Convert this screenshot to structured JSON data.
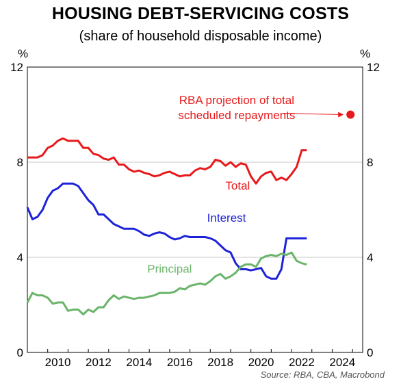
{
  "chart_data": {
    "type": "line",
    "title": "HOUSING DEBT-SERVICING COSTS",
    "subtitle": "(share of household disposable income)",
    "y_unit_left": "%",
    "y_unit_right": "%",
    "xlim": [
      2009,
      2025.5
    ],
    "ylim": [
      0,
      12
    ],
    "x_ticks": [
      2010,
      2012,
      2014,
      2016,
      2018,
      2020,
      2022,
      2024
    ],
    "y_ticks": [
      0,
      4,
      8,
      12
    ],
    "grid": true,
    "source": "Source: RBA, CBA, Macrobond",
    "colors": {
      "total": "#e8191b",
      "interest": "#1d22d8",
      "principal": "#6ab46a"
    },
    "series": [
      {
        "name": "Total",
        "color": "#e8191b",
        "x": [
          2009.0,
          2009.25,
          2009.5,
          2009.75,
          2010.0,
          2010.25,
          2010.5,
          2010.75,
          2011.0,
          2011.25,
          2011.5,
          2011.75,
          2012.0,
          2012.25,
          2012.5,
          2012.75,
          2013.0,
          2013.25,
          2013.5,
          2013.75,
          2014.0,
          2014.25,
          2014.5,
          2014.75,
          2015.0,
          2015.25,
          2015.5,
          2015.75,
          2016.0,
          2016.25,
          2016.5,
          2016.75,
          2017.0,
          2017.25,
          2017.5,
          2017.75,
          2018.0,
          2018.25,
          2018.5,
          2018.75,
          2019.0,
          2019.25,
          2019.5,
          2019.75,
          2020.0,
          2020.25,
          2020.5,
          2020.75,
          2021.0,
          2021.25,
          2021.5,
          2021.75,
          2022.0,
          2022.25,
          2022.5,
          2022.75
        ],
        "values": [
          8.2,
          8.2,
          8.2,
          8.3,
          8.6,
          8.7,
          8.9,
          9.0,
          8.9,
          8.9,
          8.9,
          8.6,
          8.6,
          8.35,
          8.3,
          8.15,
          8.1,
          8.2,
          7.9,
          7.9,
          7.7,
          7.6,
          7.65,
          7.55,
          7.5,
          7.4,
          7.45,
          7.55,
          7.6,
          7.5,
          7.4,
          7.45,
          7.45,
          7.65,
          7.75,
          7.7,
          7.8,
          8.1,
          8.05,
          7.85,
          8.0,
          7.8,
          7.95,
          7.9,
          7.4,
          7.1,
          7.4,
          7.55,
          7.6,
          7.25,
          7.35,
          7.25,
          7.5,
          7.8,
          8.5,
          8.5
        ]
      },
      {
        "name": "Interest",
        "color": "#1d22d8",
        "x": [
          2009.0,
          2009.25,
          2009.5,
          2009.75,
          2010.0,
          2010.25,
          2010.5,
          2010.75,
          2011.0,
          2011.25,
          2011.5,
          2011.75,
          2012.0,
          2012.25,
          2012.5,
          2012.75,
          2013.0,
          2013.25,
          2013.5,
          2013.75,
          2014.0,
          2014.25,
          2014.5,
          2014.75,
          2015.0,
          2015.25,
          2015.5,
          2015.75,
          2016.0,
          2016.25,
          2016.5,
          2016.75,
          2017.0,
          2017.25,
          2017.5,
          2017.75,
          2018.0,
          2018.25,
          2018.5,
          2018.75,
          2019.0,
          2019.25,
          2019.5,
          2019.75,
          2020.0,
          2020.25,
          2020.5,
          2020.75,
          2021.0,
          2021.25,
          2021.5,
          2021.75,
          2022.0,
          2022.25,
          2022.5,
          2022.75
        ],
        "values": [
          6.1,
          5.6,
          5.7,
          6.0,
          6.5,
          6.8,
          6.9,
          7.1,
          7.1,
          7.1,
          7.0,
          6.7,
          6.4,
          6.2,
          5.8,
          5.8,
          5.6,
          5.4,
          5.3,
          5.2,
          5.2,
          5.2,
          5.1,
          4.95,
          4.9,
          5.0,
          5.05,
          5.0,
          4.85,
          4.75,
          4.8,
          4.9,
          4.85,
          4.85,
          4.85,
          4.85,
          4.8,
          4.7,
          4.5,
          4.3,
          4.2,
          3.75,
          3.5,
          3.5,
          3.45,
          3.5,
          3.55,
          3.2,
          3.1,
          3.1,
          3.5,
          4.8,
          4.8,
          4.8,
          4.8,
          4.8
        ]
      },
      {
        "name": "Principal",
        "color": "#6ab46a",
        "x": [
          2009.0,
          2009.25,
          2009.5,
          2009.75,
          2010.0,
          2010.25,
          2010.5,
          2010.75,
          2011.0,
          2011.25,
          2011.5,
          2011.75,
          2012.0,
          2012.25,
          2012.5,
          2012.75,
          2013.0,
          2013.25,
          2013.5,
          2013.75,
          2014.0,
          2014.25,
          2014.5,
          2014.75,
          2015.0,
          2015.25,
          2015.5,
          2015.75,
          2016.0,
          2016.25,
          2016.5,
          2016.75,
          2017.0,
          2017.25,
          2017.5,
          2017.75,
          2018.0,
          2018.25,
          2018.5,
          2018.75,
          2019.0,
          2019.25,
          2019.5,
          2019.75,
          2020.0,
          2020.25,
          2020.5,
          2020.75,
          2021.0,
          2021.25,
          2021.5,
          2021.75,
          2022.0,
          2022.25,
          2022.5,
          2022.75
        ],
        "values": [
          2.1,
          2.5,
          2.4,
          2.4,
          2.3,
          2.05,
          2.1,
          2.1,
          1.75,
          1.8,
          1.8,
          1.6,
          1.8,
          1.7,
          1.9,
          1.9,
          2.2,
          2.4,
          2.25,
          2.35,
          2.3,
          2.25,
          2.3,
          2.3,
          2.35,
          2.4,
          2.5,
          2.5,
          2.5,
          2.55,
          2.7,
          2.65,
          2.8,
          2.85,
          2.9,
          2.85,
          3.0,
          3.2,
          3.3,
          3.1,
          3.2,
          3.35,
          3.6,
          3.7,
          3.7,
          3.6,
          3.95,
          4.05,
          4.1,
          4.05,
          4.15,
          4.1,
          4.2,
          3.85,
          3.75,
          3.7
        ]
      }
    ],
    "series_labels": [
      {
        "text": "Total",
        "x": 2019.35,
        "y": 6.85,
        "color": "#e8191b"
      },
      {
        "text": "Interest",
        "x": 2018.8,
        "y": 5.5,
        "color": "#1d22d8"
      },
      {
        "text": "Principal",
        "x": 2016.0,
        "y": 3.35,
        "color": "#6ab46a"
      }
    ],
    "projection": {
      "label_line1": "RBA projection of total",
      "label_line2": "scheduled repayments",
      "x": 2024.9,
      "y": 10.0,
      "color": "#e8191b",
      "label_x": 2019.3,
      "label_y": 10.45
    }
  }
}
